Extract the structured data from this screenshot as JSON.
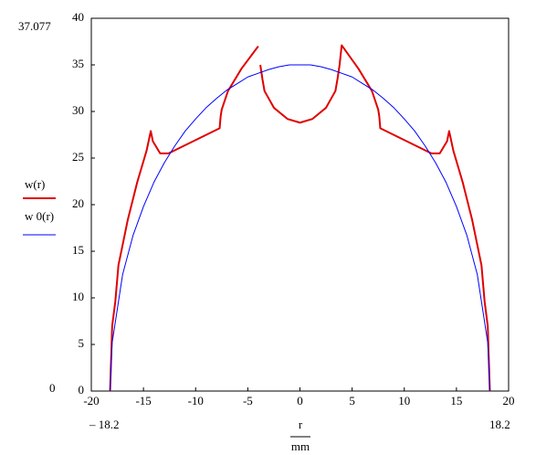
{
  "chart_data": {
    "type": "line",
    "ylim_label": "37.077",
    "ymin_label": "0",
    "xmin_label": "– 18.2",
    "xmax_label": "18.2",
    "xlabel": "r",
    "xlabel_unit": "mm",
    "xlim": [
      -20,
      20
    ],
    "xticks": [
      -20,
      -15,
      -10,
      -5,
      0,
      5,
      10,
      15,
      20
    ],
    "ylim": [
      0,
      40
    ],
    "yticks": [
      0,
      5,
      10,
      15,
      20,
      25,
      30,
      35,
      40
    ],
    "grid": false,
    "series": [
      {
        "name": "w(r)",
        "color": "#e00000",
        "width": 2,
        "x": [
          -18.2,
          -18.0,
          -17.7,
          -17.4,
          -16.5,
          -15.6,
          -14.7,
          -14.3,
          -14.1,
          -13.4,
          -12.6,
          -7.7,
          -7.6,
          -7.5,
          -6.9,
          -5.6,
          -4.0,
          -3.9,
          -3.8,
          -3.6,
          -3.4,
          -2.5,
          -1.2,
          0,
          1.2,
          2.5,
          3.4,
          3.6,
          3.8,
          4.0,
          5.6,
          6.9,
          7.5,
          7.6,
          7.7,
          12.6,
          13.4,
          14.1,
          14.3,
          14.7,
          15.6,
          16.5,
          17.4,
          17.7,
          18.0,
          18.2
        ],
        "values": [
          0,
          7,
          9.6,
          13.5,
          18.4,
          22.4,
          25.8,
          27.9,
          26.8,
          25.5,
          25.5,
          28.2,
          29.5,
          30.2,
          32.2,
          34.6,
          37.0,
          null,
          35.0,
          33.5,
          32.2,
          30.4,
          29.2,
          28.8,
          29.2,
          30.4,
          32.2,
          33.5,
          35.0,
          37.1,
          34.6,
          32.2,
          30.2,
          29.5,
          28.2,
          25.5,
          25.5,
          26.8,
          27.9,
          25.8,
          22.4,
          18.4,
          13.5,
          9.6,
          7,
          0
        ]
      },
      {
        "name": "w 0(r)",
        "color": "#0000ff",
        "width": 1,
        "x": [
          -18.2,
          -18,
          -17,
          -16,
          -15,
          -14,
          -13,
          -12,
          -11,
          -10,
          -9,
          -8,
          -7,
          -6,
          -5,
          -4,
          -3,
          -2,
          -1,
          0,
          1,
          2,
          3,
          4,
          5,
          6,
          7,
          8,
          9,
          10,
          11,
          12,
          13,
          14,
          15,
          16,
          17,
          18,
          18.2
        ],
        "values": [
          0,
          5.2,
          12.5,
          16.7,
          19.8,
          22.4,
          24.5,
          26.3,
          27.9,
          29.2,
          30.4,
          31.4,
          32.3,
          33.0,
          33.7,
          34.1,
          34.5,
          34.8,
          35.0,
          35.0,
          35.0,
          34.8,
          34.5,
          34.1,
          33.7,
          33.0,
          32.3,
          31.4,
          30.4,
          29.2,
          27.9,
          26.3,
          24.5,
          22.4,
          19.8,
          16.7,
          12.5,
          5.2,
          0
        ]
      }
    ]
  }
}
